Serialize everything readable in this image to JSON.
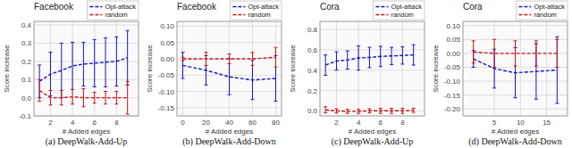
{
  "chart_data": [
    {
      "type": "line",
      "title": "Facebook",
      "subtitle": "(a) DeepWalk-Add-Up",
      "xlabel": "# Added edges",
      "ylabel": "Score increase",
      "x": [
        1,
        2,
        3,
        4,
        5,
        6,
        7,
        8,
        9
      ],
      "xlim": [
        0.5,
        10
      ],
      "ylim": [
        -0.1,
        0.42
      ],
      "xticks": [
        2,
        4,
        6,
        8
      ],
      "yticks": [
        -0.1,
        {
          "value": 0,
          "label": "0.0"
        },
        0.1,
        0.2,
        0.3,
        0.4
      ],
      "grid": true,
      "legend": "upper right",
      "series": [
        {
          "name": "Opt-attack",
          "color": "#1414CC",
          "line_style": "dashed",
          "values": [
            0.09,
            0.13,
            0.15,
            0.175,
            0.185,
            0.19,
            0.195,
            0.2,
            0.22
          ],
          "errors": [
            0.09,
            0.12,
            0.15,
            0.13,
            0.12,
            0.13,
            0.135,
            0.135,
            0.15
          ]
        },
        {
          "name": "random",
          "color": "#CC1414",
          "line_style": "dashed",
          "values": [
            0.04,
            0.0,
            0.0,
            0.005,
            0.0,
            0.0,
            0.0,
            0.0,
            0.0
          ],
          "errors": [
            0.06,
            0.04,
            0.04,
            0.04,
            0.05,
            0.03,
            0.035,
            0.035,
            0.09
          ]
        }
      ]
    },
    {
      "type": "line",
      "title": "Facebook",
      "subtitle": "(b) DeepWalk-Add-Down",
      "xlabel": "# Added edges",
      "ylabel": "Score increase",
      "x": [
        0,
        20,
        40,
        60,
        80
      ],
      "xlim": [
        -5,
        85
      ],
      "ylim": [
        -0.175,
        0.115
      ],
      "xticks": [
        0,
        20,
        40,
        60,
        80
      ],
      "yticks": [
        -0.15,
        {
          "value": -0.1,
          "label": "-0.10"
        },
        -0.05,
        {
          "value": 0,
          "label": "0.00"
        },
        0.05,
        {
          "value": 0.1,
          "label": "0.10"
        }
      ],
      "grid": true,
      "legend": "upper right",
      "series": [
        {
          "name": "Opt-attack",
          "color": "#1414CC",
          "line_style": "dashed",
          "values": [
            -0.02,
            -0.035,
            -0.055,
            -0.065,
            -0.06
          ],
          "errors": [
            0.04,
            0.045,
            0.055,
            0.06,
            0.07
          ]
        },
        {
          "name": "random",
          "color": "#CC1414",
          "line_style": "dashed",
          "values": [
            0.0,
            0.0,
            0.0,
            0.0,
            0.005
          ],
          "errors": [
            0.005,
            0.02,
            0.015,
            0.02,
            0.03
          ]
        }
      ]
    },
    {
      "type": "line",
      "title": "Cora",
      "subtitle": "(c) DeepWalk-Add-Up",
      "xlabel": "# Added edges",
      "ylabel": "Score increase",
      "x": [
        1,
        2,
        3,
        4,
        5,
        6,
        7,
        8,
        9
      ],
      "xlim": [
        0.5,
        10
      ],
      "ylim": [
        -0.05,
        0.88
      ],
      "xticks": [
        2,
        4,
        6,
        8
      ],
      "yticks": [
        {
          "value": 0,
          "label": "0.0"
        },
        0.2,
        0.4,
        0.6,
        0.8
      ],
      "grid": true,
      "legend": "upper right",
      "series": [
        {
          "name": "Opt-attack",
          "color": "#1414CC",
          "line_style": "dashed",
          "values": [
            0.45,
            0.49,
            0.5,
            0.52,
            0.525,
            0.535,
            0.54,
            0.545,
            0.55
          ],
          "errors": [
            0.1,
            0.09,
            0.09,
            0.12,
            0.1,
            0.1,
            0.085,
            0.085,
            0.1
          ]
        },
        {
          "name": "random",
          "color": "#CC1414",
          "line_style": "dashed",
          "values": [
            0.01,
            0.0,
            -0.005,
            -0.005,
            0.0,
            0.0,
            0.0,
            0.0,
            0.005
          ],
          "errors": [
            0.03,
            0.02,
            0.02,
            0.02,
            0.02,
            0.025,
            0.025,
            0.025,
            0.02
          ]
        }
      ]
    },
    {
      "type": "line",
      "title": "Cora",
      "subtitle": "(d) DeepWalk-Add-Down",
      "xlabel": "# Added edges",
      "ylabel": "Score increase",
      "x": [
        1,
        5,
        9,
        13,
        17
      ],
      "xlim": [
        -1,
        19
      ],
      "ylim": [
        -0.225,
        0.115
      ],
      "xticks": [
        5,
        10,
        15
      ],
      "yticks": [
        {
          "value": -0.2,
          "label": "-0.20"
        },
        -0.15,
        {
          "value": -0.1,
          "label": "-0.10"
        },
        -0.05,
        {
          "value": 0,
          "label": "0.00"
        },
        0.05,
        {
          "value": 0.1,
          "label": "0.10"
        }
      ],
      "grid": true,
      "legend": "upper right",
      "series": [
        {
          "name": "Opt-attack",
          "color": "#1414CC",
          "line_style": "dashed",
          "values": [
            -0.02,
            -0.055,
            -0.07,
            -0.065,
            -0.06
          ],
          "errors": [
            0.03,
            0.07,
            0.09,
            0.1,
            0.12
          ]
        },
        {
          "name": "random",
          "color": "#CC1414",
          "line_style": "dashed",
          "values": [
            0.005,
            0.0,
            0.0,
            0.0,
            0.0
          ],
          "errors": [
            0.04,
            0.05,
            0.045,
            0.045,
            0.05
          ]
        }
      ]
    }
  ]
}
